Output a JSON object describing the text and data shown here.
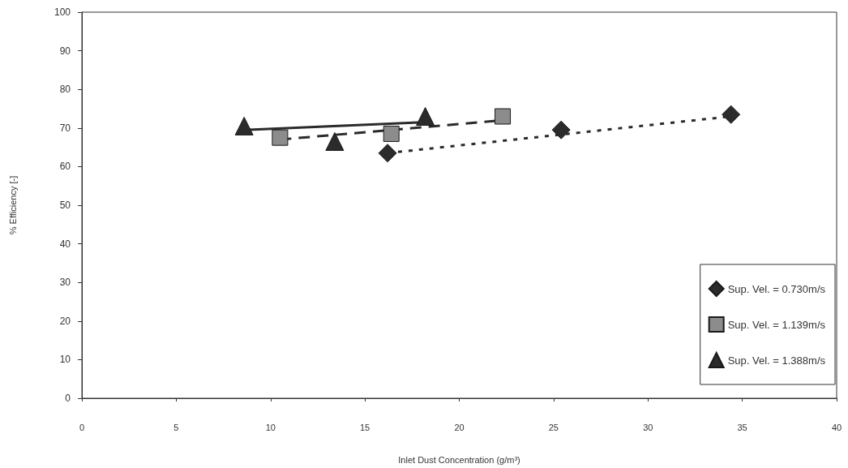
{
  "chart_data": {
    "type": "scatter",
    "xlabel": "Inlet Dust Concentration (g/m³)",
    "ylabel": "% Efficiency [-]",
    "xlim": [
      0,
      40
    ],
    "xticks": [
      0,
      5,
      10,
      15,
      20,
      25,
      30,
      35,
      40
    ],
    "ylim": [
      0,
      100
    ],
    "yticks": [
      0,
      10,
      20,
      30,
      40,
      50,
      60,
      70,
      80,
      90,
      100
    ],
    "grid": false,
    "legend": "bottom right",
    "series": [
      {
        "name": "Sup. Vel. = 0.730m/s",
        "color": "#2b2b2b",
        "marker": "diamond",
        "x": [
          16.2,
          25.4,
          34.4
        ],
        "values": [
          63.5,
          69.5,
          73.5
        ]
      },
      {
        "name": "Sup. Vel. = 1.139m/s",
        "color": "#8c8c8c",
        "marker": "square",
        "x": [
          10.5,
          16.4,
          22.3
        ],
        "values": [
          67.5,
          68.5,
          73
        ]
      },
      {
        "name": "Sup. Vel. = 1.388m/s",
        "color": "#2b2b2b",
        "marker": "triangle",
        "x": [
          8.6,
          13.4,
          18.2
        ],
        "values": [
          70.5,
          66.5,
          73
        ]
      },
      {
        "type": "line",
        "color": "#2b2b2b",
        "marker": "none",
        "line_style": "dotted",
        "x": [
          16.2,
          34.4
        ],
        "values": [
          63.5,
          73
        ]
      },
      {
        "type": "line",
        "color": "#2b2b2b",
        "marker": "none",
        "line_style": "dashed",
        "x": [
          10.5,
          22.3
        ],
        "values": [
          67,
          72
        ]
      },
      {
        "type": "line",
        "color": "#2b2b2b",
        "marker": "none",
        "line_style": "solid",
        "x": [
          8.6,
          18.2
        ],
        "values": [
          69.5,
          71.5
        ]
      }
    ]
  }
}
